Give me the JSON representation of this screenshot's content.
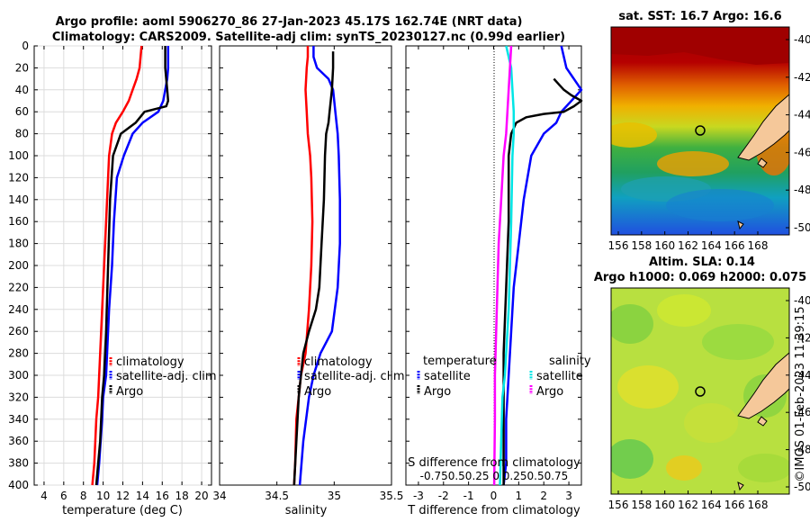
{
  "header": {
    "line1": "Argo profile: aoml 5906270_86 27-Jan-2023 45.17S 162.74E (NRT data)",
    "line2": "Climatology: CARS2009. Satellite-adj clim: synTS_20230127.nc (0.99d earlier)"
  },
  "colors": {
    "climatology": "#ff0000",
    "satellite": "#0000ff",
    "argo": "#000000",
    "sat_salinity": "#00e5e5",
    "argo_salinity": "#ff00ff",
    "land": "#f5c89a"
  },
  "depth_axis": {
    "ylim": [
      0,
      400
    ],
    "ticks": [
      "0",
      "20",
      "40",
      "60",
      "80",
      "100",
      "120",
      "140",
      "160",
      "180",
      "200",
      "220",
      "240",
      "260",
      "280",
      "300",
      "320",
      "340",
      "360",
      "380",
      "400"
    ]
  },
  "chart_data": [
    {
      "type": "line",
      "name": "temperature-profile",
      "xlabel": "temperature (deg C)",
      "xlim": [
        3,
        21
      ],
      "xticks": [
        4,
        6,
        8,
        10,
        12,
        14,
        16,
        18,
        20
      ],
      "xtick_labels": [
        "4",
        "6",
        "8",
        "10",
        "12",
        "14",
        "16",
        "18",
        "20"
      ],
      "ylabel": "depth",
      "ylim": [
        0,
        400
      ],
      "legend": [
        "climatology",
        "satellite-adj. clim",
        "Argo"
      ],
      "series": [
        {
          "name": "climatology",
          "color": "#ff0000",
          "x": [
            13.9,
            13.7,
            13.4,
            13.0,
            12.6,
            12.0,
            11.3,
            10.9,
            10.6,
            10.5,
            10.3,
            10.1,
            9.9,
            9.8,
            9.6,
            9.5,
            9.3,
            9.1,
            8.9
          ],
          "depth": [
            0,
            20,
            30,
            40,
            50,
            60,
            70,
            80,
            100,
            120,
            160,
            200,
            240,
            260,
            300,
            320,
            340,
            380,
            400
          ]
        },
        {
          "name": "satellite-adj. clim",
          "color": "#0000ff",
          "x": [
            16.6,
            16.6,
            16.5,
            16.3,
            16.1,
            15.6,
            14.0,
            13.0,
            12.1,
            11.4,
            11.1,
            10.9,
            10.6,
            10.5,
            10.3,
            10.0,
            9.9,
            9.6,
            9.4
          ],
          "depth": [
            0,
            20,
            30,
            40,
            50,
            60,
            70,
            80,
            100,
            120,
            160,
            200,
            240,
            260,
            300,
            320,
            340,
            380,
            400
          ]
        },
        {
          "name": "Argo",
          "color": "#000000",
          "x": [
            16.3,
            16.3,
            16.4,
            16.5,
            16.6,
            16.4,
            14.2,
            13.3,
            11.8,
            11.0,
            10.7,
            10.5,
            10.3,
            10.1,
            9.9,
            9.8,
            9.7,
            9.5,
            9.3
          ],
          "depth": [
            0,
            20,
            30,
            40,
            50,
            55,
            60,
            70,
            80,
            100,
            140,
            200,
            260,
            300,
            320,
            340,
            360,
            380,
            400
          ]
        }
      ]
    },
    {
      "type": "line",
      "name": "salinity-profile",
      "xlabel": "salinity",
      "xlim": [
        34.0,
        35.5
      ],
      "xticks": [
        34.0,
        34.5,
        35.0,
        35.5
      ],
      "xtick_labels": [
        "34",
        "34.5",
        "35",
        "35.5"
      ],
      "ylabel": "depth",
      "ylim": [
        0,
        400
      ],
      "legend": [
        "climatology",
        "satellite-adj. clim",
        "Argo"
      ],
      "series": [
        {
          "name": "climatology",
          "color": "#ff0000",
          "x": [
            34.77,
            34.77,
            34.76,
            34.75,
            34.76,
            34.77,
            34.79,
            34.8,
            34.81,
            34.8,
            34.78,
            34.75,
            34.71,
            34.69,
            34.67,
            34.66,
            34.65
          ],
          "depth": [
            0,
            10,
            20,
            40,
            60,
            80,
            100,
            120,
            160,
            200,
            240,
            280,
            300,
            320,
            340,
            380,
            400
          ]
        },
        {
          "name": "satellite-adj. clim",
          "color": "#0000ff",
          "x": [
            34.82,
            34.82,
            34.85,
            34.95,
            34.99,
            35.01,
            35.03,
            35.04,
            35.05,
            35.05,
            35.03,
            34.98,
            34.88,
            34.82,
            34.78,
            34.73,
            34.7
          ],
          "depth": [
            0,
            10,
            20,
            30,
            40,
            60,
            80,
            100,
            140,
            180,
            220,
            260,
            280,
            300,
            320,
            360,
            400
          ]
        },
        {
          "name": "Argo",
          "color": "#000000",
          "x": [
            34.99,
            34.99,
            34.98,
            34.97,
            34.96,
            34.95,
            34.93,
            34.92,
            34.91,
            34.89,
            34.87,
            34.84,
            34.78,
            34.73,
            34.71,
            34.69,
            34.67,
            34.65
          ],
          "depth": [
            5,
            20,
            40,
            50,
            60,
            70,
            80,
            100,
            140,
            180,
            220,
            240,
            260,
            280,
            300,
            320,
            360,
            400
          ]
        }
      ]
    },
    {
      "type": "line",
      "name": "difference-profile",
      "xlabel": "T difference from climatology",
      "xlim": [
        -3.5,
        3.5
      ],
      "xticks": [
        -3,
        -2,
        -1,
        0,
        1,
        2,
        3
      ],
      "xtick_labels": [
        "-3",
        "-2",
        "-1",
        "0",
        "1",
        "2",
        "3"
      ],
      "top_label": "S difference from climatology",
      "top_ticks": "-0.750.50.25 0 0.250.50.75",
      "ylabel": "depth",
      "ylim": [
        0,
        400
      ],
      "legend_titles": [
        "temperature",
        "salinity"
      ],
      "legend": [
        "satellite",
        "Argo",
        "satellite",
        "Argo"
      ],
      "series": [
        {
          "name": "T satellite",
          "color": "#0000ff",
          "x": [
            2.7,
            2.8,
            2.9,
            3.2,
            3.5,
            3.1,
            2.7,
            2.5,
            2.0,
            1.5,
            1.2,
            1.0,
            0.8,
            0.7,
            0.6,
            0.5,
            0.5,
            0.4
          ],
          "depth": [
            0,
            10,
            20,
            30,
            40,
            50,
            60,
            70,
            80,
            100,
            140,
            180,
            220,
            260,
            300,
            340,
            380,
            400
          ]
        },
        {
          "name": "T Argo",
          "color": "#000000",
          "x": [
            2.4,
            2.6,
            2.8,
            3.1,
            3.5,
            3.2,
            2.8,
            2.0,
            1.3,
            0.9,
            0.7,
            0.6,
            0.6,
            0.5,
            0.4,
            0.4,
            0.4
          ],
          "depth": [
            30,
            35,
            40,
            45,
            50,
            55,
            60,
            62,
            65,
            70,
            80,
            100,
            160,
            220,
            280,
            340,
            400
          ]
        },
        {
          "name": "S satellite",
          "color": "#00e5e5",
          "x": [
            0.5,
            0.6,
            0.7,
            0.75,
            0.8,
            0.8,
            0.75,
            0.7,
            0.65,
            0.6,
            0.5,
            0.45,
            0.35,
            0.3,
            0.25
          ],
          "depth": [
            0,
            10,
            20,
            40,
            60,
            80,
            100,
            160,
            200,
            240,
            280,
            300,
            320,
            360,
            400
          ]
        },
        {
          "name": "S Argo",
          "color": "#ff00ff",
          "x": [
            0.7,
            0.65,
            0.6,
            0.55,
            0.5,
            0.4,
            0.3,
            0.2,
            0.15,
            0.1,
            0.05,
            0.05,
            0.02
          ],
          "depth": [
            0,
            20,
            40,
            60,
            80,
            100,
            140,
            180,
            220,
            260,
            300,
            340,
            400
          ]
        }
      ]
    }
  ],
  "sst_map": {
    "title": "sat. SST: 16.7 Argo: 16.6",
    "yticks": [
      "-40",
      "-42",
      "-44",
      "-46",
      "-48",
      "-50"
    ],
    "xticks": [
      "156",
      "158",
      "160",
      "162",
      "164",
      "166",
      "168"
    ]
  },
  "sla_map": {
    "title1": "Altim. SLA: 0.14",
    "title2": "Argo h1000: 0.069 h2000: 0.075",
    "yticks": [
      "-40",
      "-42",
      "-44",
      "-46",
      "-48",
      "-50"
    ],
    "xticks": [
      "156",
      "158",
      "160",
      "162",
      "164",
      "166",
      "168"
    ]
  },
  "credit": "©IMOS 01-Feb-2023 11:39:15"
}
